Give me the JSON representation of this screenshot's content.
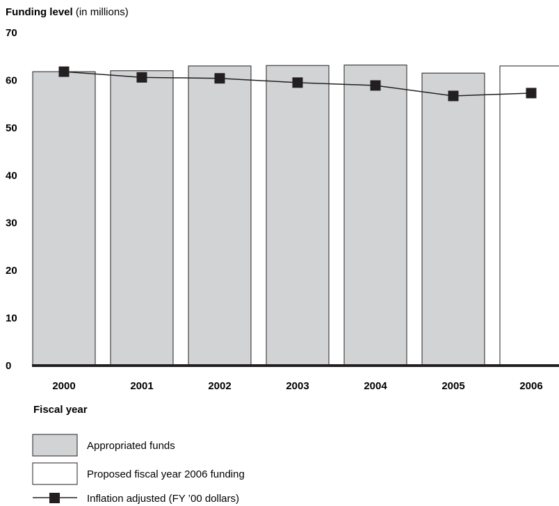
{
  "chart_data": {
    "type": "bar",
    "ylabel_bold": "Funding level",
    "ylabel_rest": " (in millions)",
    "xlabel": "Fiscal year",
    "categories": [
      "2000",
      "2001",
      "2002",
      "2003",
      "2004",
      "2005",
      "2006"
    ],
    "yticks": [
      "0",
      "10",
      "20",
      "30",
      "40",
      "50",
      "60",
      "70"
    ],
    "ylim": [
      0,
      70
    ],
    "series": [
      {
        "name": "Appropriated funds",
        "kind": "bar",
        "fill": "#d1d3d4",
        "values": [
          61.8,
          62.0,
          63.0,
          63.1,
          63.2,
          61.5,
          null
        ]
      },
      {
        "name": "Proposed fiscal year 2006 funding",
        "kind": "bar",
        "fill": "#ffffff",
        "values": [
          null,
          null,
          null,
          null,
          null,
          null,
          63.0
        ]
      },
      {
        "name": "Inflation adjusted (FY ’00 dollars)",
        "kind": "line",
        "color": "#231f20",
        "values": [
          61.8,
          60.6,
          60.4,
          59.5,
          58.9,
          56.7,
          57.3
        ]
      }
    ],
    "legend": {
      "position": "bottom-left",
      "items": [
        "Appropriated funds",
        "Proposed fiscal year 2006 funding",
        "Inflation adjusted (FY ’00 dollars)"
      ]
    }
  }
}
